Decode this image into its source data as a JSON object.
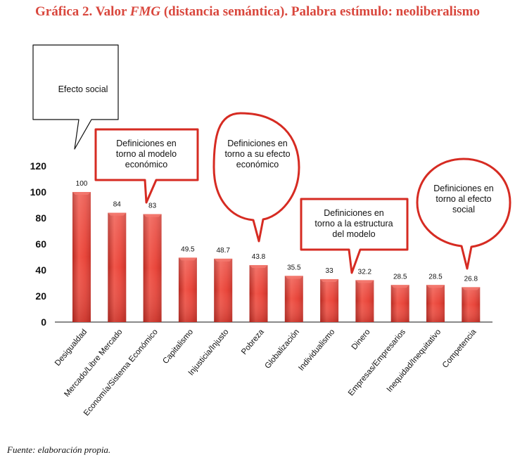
{
  "title": {
    "prefix": "Gráfica 2. Valor ",
    "emphasis": "FMG",
    "suffix": " (distancia semántica). Palabra estímulo: neoliberalismo"
  },
  "source_note": "Fuente: elaboración propia.",
  "colors": {
    "title": "#d9473d",
    "bar": "#e8453a",
    "bar_dark": "#b32a22",
    "bubble_stroke": "#d62b22"
  },
  "chart_data": {
    "type": "bar",
    "title": "Valor FMG (distancia semántica). Palabra estímulo: neoliberalismo",
    "xlabel": "",
    "ylabel": "",
    "ylim": [
      0,
      120
    ],
    "yticks": [
      0,
      20,
      40,
      60,
      80,
      100,
      120
    ],
    "categories": [
      "Desigualdad",
      "Mercado/Libre Mercado",
      "Economía/Sistema Económico",
      "Capitalismo",
      "Injusticia/Injusto",
      "Pobreza",
      "Globalización",
      "Individualismo",
      "Dinero",
      "Empresas/Empresarios",
      "Inequidad/Inequitativo",
      "Competencia"
    ],
    "values": [
      100,
      84,
      83,
      49.5,
      48.7,
      43.8,
      35.5,
      33,
      32.2,
      28.5,
      28.5,
      26.8
    ],
    "value_labels": [
      "100",
      "84",
      "83",
      "49.5",
      "48.7",
      "43.8",
      "35.5",
      "33",
      "32.2",
      "28.5",
      "28.5",
      "26.8"
    ],
    "annotations": [
      {
        "shape": "speech-rect",
        "lines": [
          "Efecto social"
        ],
        "points_to": "Desigualdad"
      },
      {
        "shape": "rect",
        "lines": [
          "Definiciones en",
          "torno al modelo",
          "económico"
        ],
        "points_to": "Economía/Sistema Económico"
      },
      {
        "shape": "oval",
        "lines": [
          "Definiciones en",
          "torno a su efecto",
          "económico"
        ],
        "points_to": "Pobreza"
      },
      {
        "shape": "rect",
        "lines": [
          "Definiciones en",
          "torno a la estructura",
          "del modelo"
        ],
        "points_to": "Dinero"
      },
      {
        "shape": "oval",
        "lines": [
          "Definiciones en",
          "torno al efecto",
          "social"
        ],
        "points_to": "Competencia"
      }
    ]
  }
}
